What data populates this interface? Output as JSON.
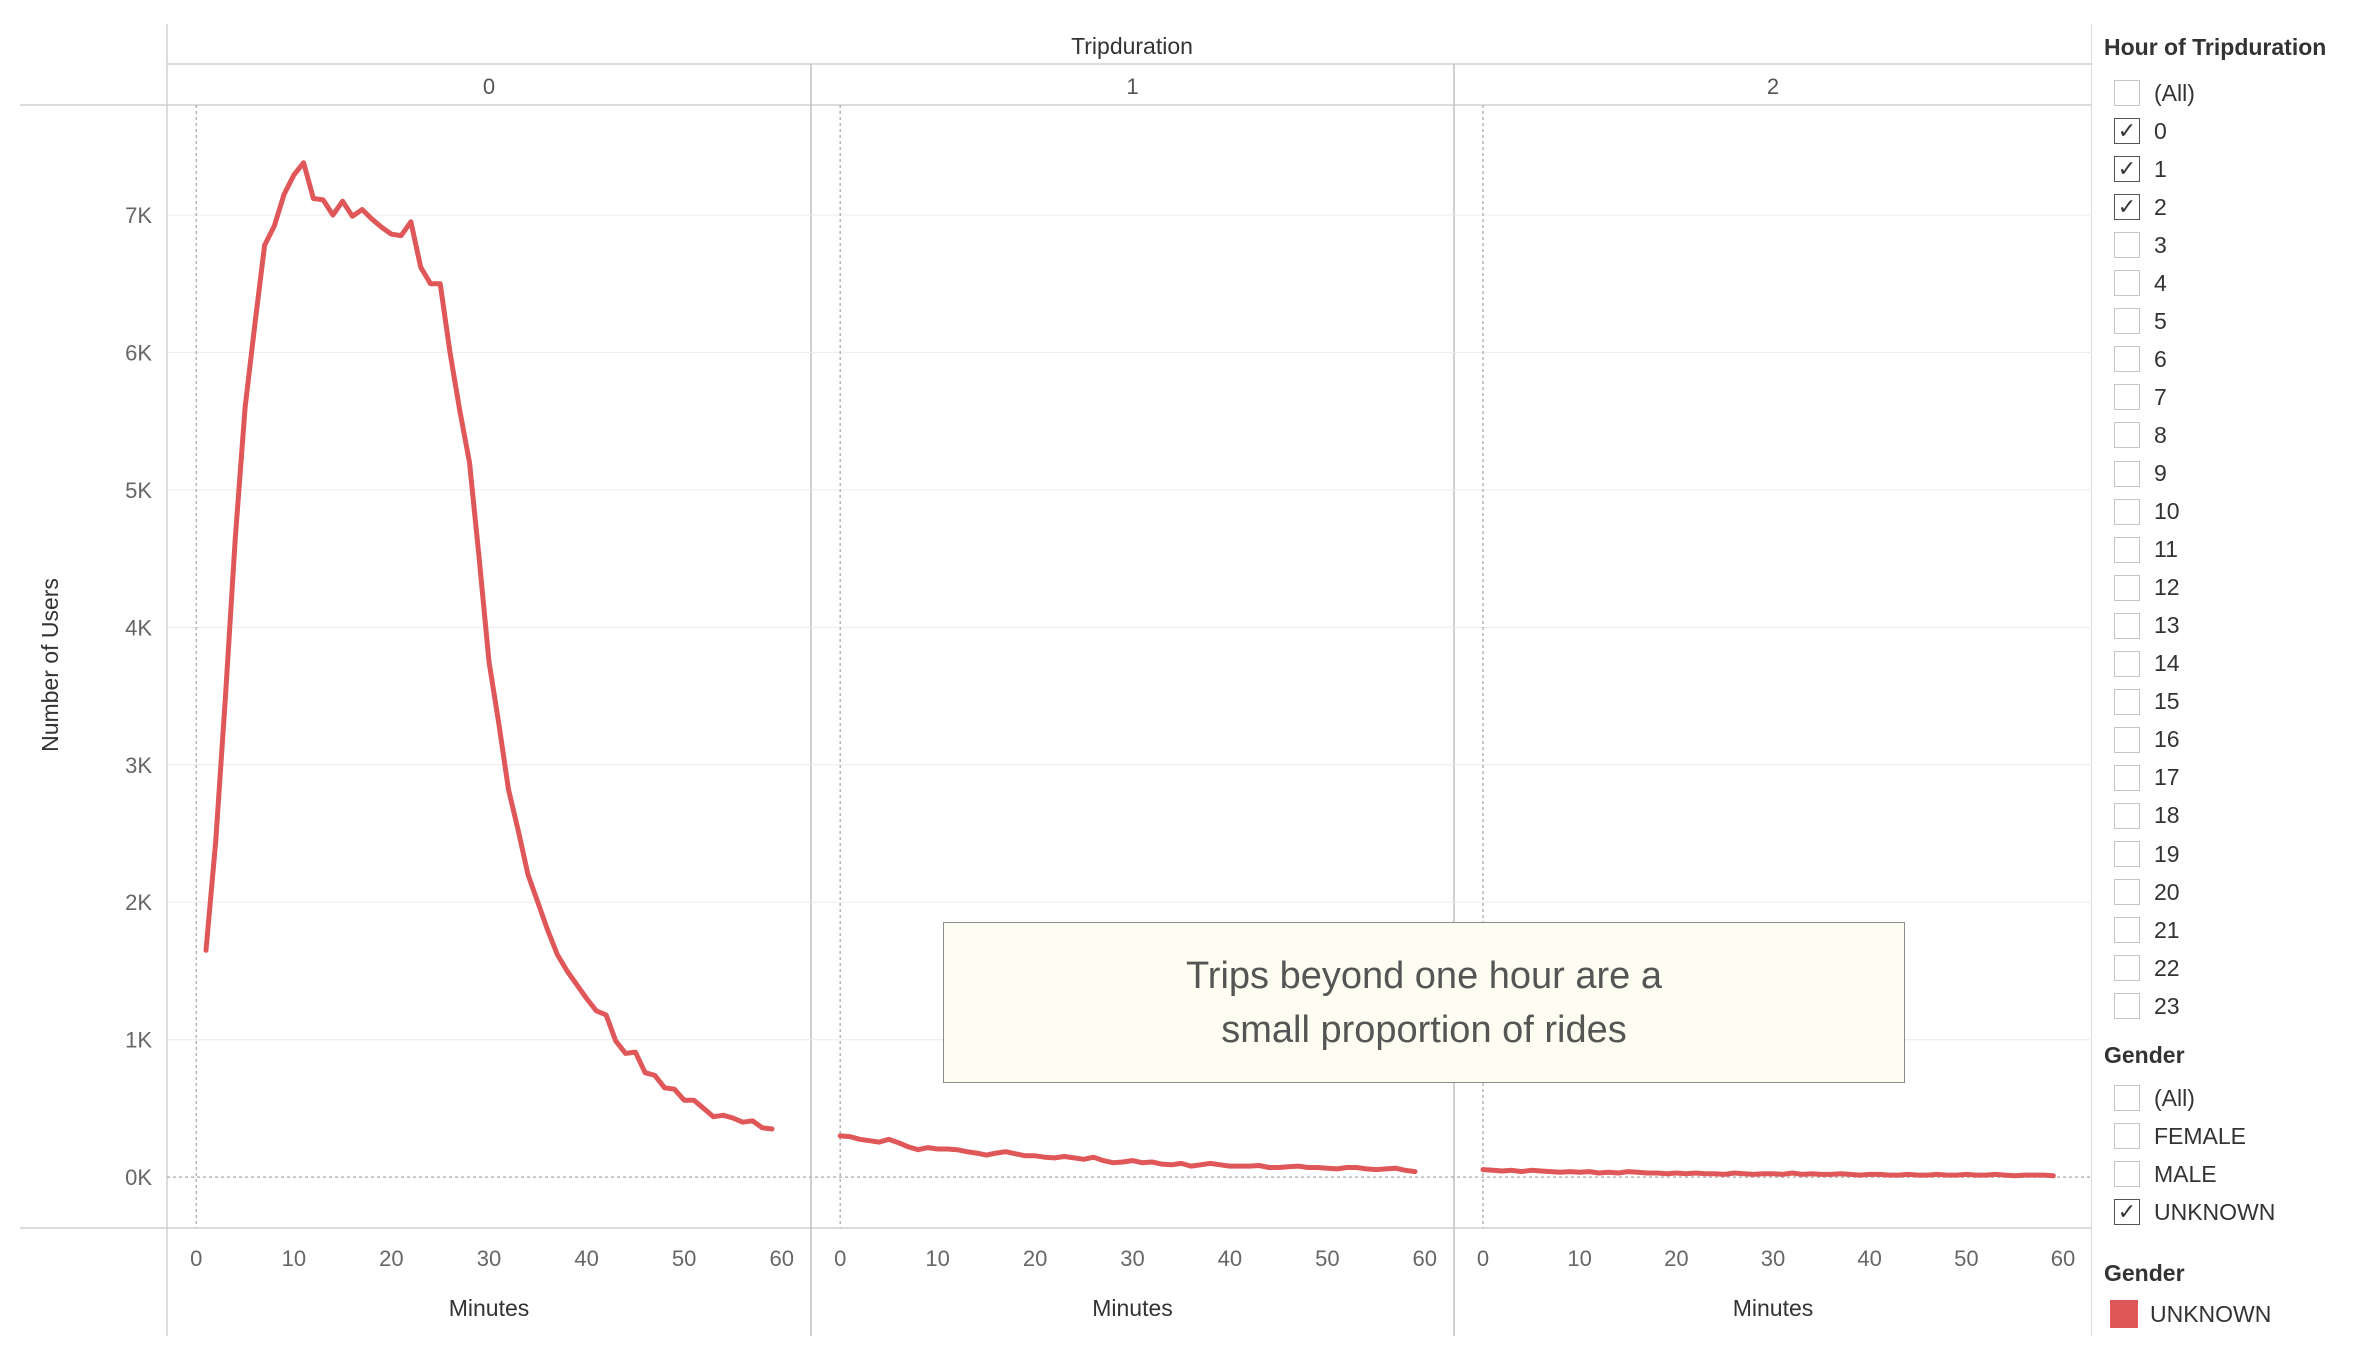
{
  "chart_data": {
    "type": "line",
    "column_header": "Tripduration",
    "panels": [
      {
        "header": "0",
        "x": [
          1,
          2,
          3,
          4,
          5,
          6,
          7,
          8,
          9,
          10,
          11,
          12,
          13,
          14,
          15,
          16,
          17,
          18,
          19,
          20,
          21,
          22,
          23,
          24,
          25,
          26,
          27,
          28,
          29,
          30,
          31,
          32,
          33,
          34,
          35,
          36,
          37,
          38,
          39,
          40,
          41,
          42,
          43,
          44,
          45,
          46,
          47,
          48,
          49,
          50,
          51,
          52,
          53,
          54,
          55,
          56,
          57,
          58,
          59
        ],
        "y": [
          1650,
          2450,
          3500,
          4650,
          5600,
          6200,
          6780,
          6920,
          7150,
          7290,
          7380,
          7120,
          7110,
          7000,
          7100,
          6990,
          7040,
          6970,
          6910,
          6860,
          6850,
          6950,
          6620,
          6500,
          6500,
          6000,
          5580,
          5200,
          4500,
          3750,
          3300,
          2820,
          2520,
          2200,
          2000,
          1800,
          1620,
          1500,
          1400,
          1300,
          1210,
          1180,
          990,
          900,
          910,
          760,
          740,
          650,
          640,
          560,
          560,
          500,
          440,
          450,
          430,
          400,
          410,
          360,
          350
        ]
      },
      {
        "header": "1",
        "x": [
          0,
          1,
          2,
          3,
          4,
          5,
          6,
          7,
          8,
          9,
          10,
          11,
          12,
          13,
          14,
          15,
          16,
          17,
          18,
          19,
          20,
          21,
          22,
          23,
          24,
          25,
          26,
          27,
          28,
          29,
          30,
          31,
          32,
          33,
          34,
          35,
          36,
          37,
          38,
          39,
          40,
          41,
          42,
          43,
          44,
          45,
          46,
          47,
          48,
          49,
          50,
          51,
          52,
          53,
          54,
          55,
          56,
          57,
          58,
          59
        ],
        "y": [
          300,
          295,
          275,
          265,
          255,
          275,
          250,
          220,
          200,
          215,
          205,
          205,
          200,
          185,
          175,
          160,
          175,
          185,
          170,
          155,
          155,
          145,
          140,
          150,
          140,
          130,
          145,
          120,
          105,
          110,
          120,
          105,
          110,
          95,
          90,
          100,
          80,
          90,
          100,
          90,
          80,
          80,
          80,
          85,
          70,
          70,
          75,
          80,
          70,
          70,
          65,
          60,
          70,
          70,
          60,
          55,
          60,
          65,
          50,
          40
        ]
      },
      {
        "header": "2",
        "x": [
          0,
          1,
          2,
          3,
          4,
          5,
          6,
          7,
          8,
          9,
          10,
          11,
          12,
          13,
          14,
          15,
          16,
          17,
          18,
          19,
          20,
          21,
          22,
          23,
          24,
          25,
          26,
          27,
          28,
          29,
          30,
          31,
          32,
          33,
          34,
          35,
          36,
          37,
          38,
          39,
          40,
          41,
          42,
          43,
          44,
          45,
          46,
          47,
          48,
          49,
          50,
          51,
          52,
          53,
          54,
          55,
          56,
          57,
          58,
          59
        ],
        "y": [
          55,
          50,
          45,
          50,
          40,
          50,
          45,
          40,
          35,
          40,
          35,
          40,
          30,
          35,
          30,
          40,
          35,
          30,
          30,
          25,
          30,
          25,
          30,
          25,
          25,
          20,
          30,
          25,
          20,
          25,
          25,
          20,
          30,
          20,
          25,
          20,
          20,
          25,
          20,
          15,
          20,
          20,
          15,
          15,
          20,
          15,
          15,
          20,
          15,
          15,
          20,
          15,
          15,
          20,
          15,
          10,
          15,
          15,
          15,
          10
        ]
      }
    ],
    "xlabel": "Minutes",
    "ylabel": "Number of Users",
    "xlim": [
      -3,
      63
    ],
    "ylim": [
      -370,
      7800
    ],
    "x_ticks": [
      "0",
      "10",
      "20",
      "30",
      "40",
      "50",
      "60"
    ],
    "x_tick_values": [
      0,
      10,
      20,
      30,
      40,
      50,
      60
    ],
    "y_ticks": [
      "0K",
      "1K",
      "2K",
      "3K",
      "4K",
      "5K",
      "6K",
      "7K"
    ],
    "y_tick_values": [
      0,
      1000,
      2000,
      3000,
      4000,
      5000,
      6000,
      7000
    ],
    "series_color": "#e05759",
    "grid": true
  },
  "annotation": {
    "line1": "Trips beyond one hour are a",
    "line2": "small proportion of rides"
  },
  "filters": {
    "hour": {
      "title": "Hour of Tripduration",
      "items": [
        {
          "label": "(All)",
          "checked": false
        },
        {
          "label": "0",
          "checked": true
        },
        {
          "label": "1",
          "checked": true
        },
        {
          "label": "2",
          "checked": true
        },
        {
          "label": "3",
          "checked": false
        },
        {
          "label": "4",
          "checked": false
        },
        {
          "label": "5",
          "checked": false
        },
        {
          "label": "6",
          "checked": false
        },
        {
          "label": "7",
          "checked": false
        },
        {
          "label": "8",
          "checked": false
        },
        {
          "label": "9",
          "checked": false
        },
        {
          "label": "10",
          "checked": false
        },
        {
          "label": "11",
          "checked": false
        },
        {
          "label": "12",
          "checked": false
        },
        {
          "label": "13",
          "checked": false
        },
        {
          "label": "14",
          "checked": false
        },
        {
          "label": "15",
          "checked": false
        },
        {
          "label": "16",
          "checked": false
        },
        {
          "label": "17",
          "checked": false
        },
        {
          "label": "18",
          "checked": false
        },
        {
          "label": "19",
          "checked": false
        },
        {
          "label": "20",
          "checked": false
        },
        {
          "label": "21",
          "checked": false
        },
        {
          "label": "22",
          "checked": false
        },
        {
          "label": "23",
          "checked": false
        }
      ]
    },
    "gender": {
      "title": "Gender",
      "items": [
        {
          "label": "(All)",
          "checked": false
        },
        {
          "label": "FEMALE",
          "checked": false
        },
        {
          "label": "MALE",
          "checked": false
        },
        {
          "label": "UNKNOWN",
          "checked": true
        }
      ]
    }
  },
  "color_legend": {
    "title": "Gender",
    "items": [
      {
        "label": "UNKNOWN",
        "color": "#e05759"
      }
    ]
  }
}
